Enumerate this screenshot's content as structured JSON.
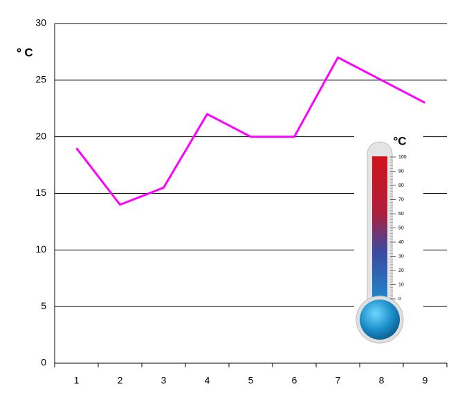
{
  "chart_data": {
    "type": "line",
    "y_label": "º C",
    "categories": [
      "1",
      "2",
      "3",
      "4",
      "5",
      "6",
      "7",
      "8",
      "9"
    ],
    "values": [
      19,
      14,
      15.5,
      22,
      20,
      20,
      27,
      25,
      23
    ],
    "color": "#ff00ff",
    "ylim": [
      0,
      30
    ],
    "yticks": [
      0,
      5,
      10,
      15,
      20,
      25,
      30
    ],
    "grid": true
  },
  "thermometer": {
    "unit": "°C",
    "scale_labels": [
      100,
      90,
      80,
      70,
      60,
      50,
      40,
      30,
      20,
      10,
      0
    ]
  }
}
